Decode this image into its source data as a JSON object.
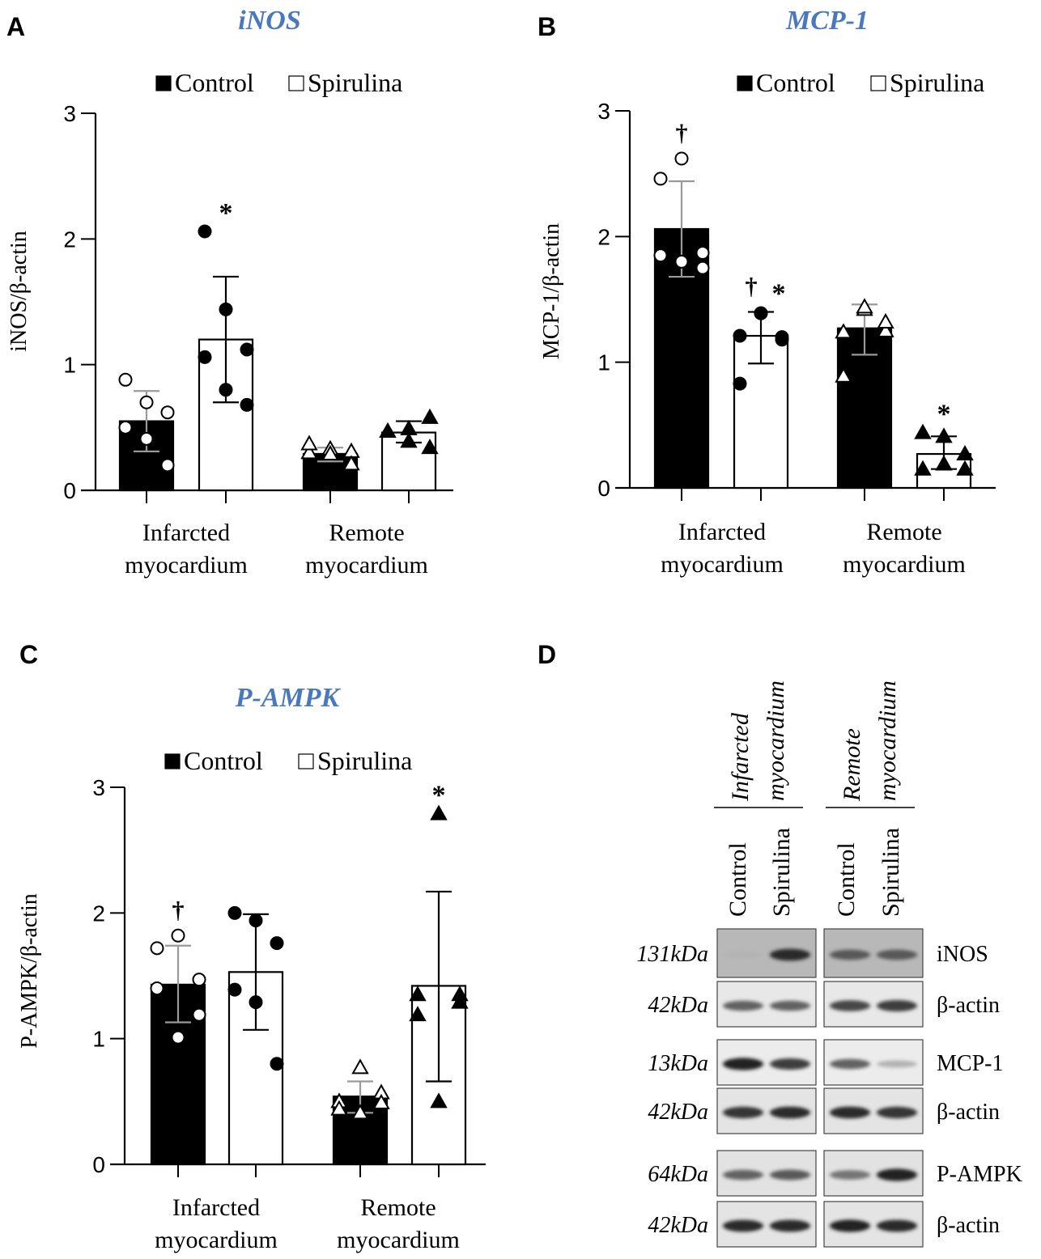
{
  "panels": {
    "A": "A",
    "B": "B",
    "C": "C",
    "D": "D"
  },
  "colors": {
    "title": "#4a78bd",
    "control_bar": "#000000",
    "spirulina_bar": "#ffffff",
    "control_error": "#9a9a9a",
    "spirulina_error": "#000000"
  },
  "chart_data": [
    {
      "type": "bar",
      "title": "iNOS",
      "ylabel": "iNOS/β-actin",
      "ylim": [
        0,
        3
      ],
      "yticks": [
        "0",
        "1",
        "2",
        "3"
      ],
      "legend": [
        "Control",
        "Spirulina"
      ],
      "legend_placement": "top",
      "categories": [
        [
          "Infarcted",
          "myocardium"
        ],
        [
          "Remote",
          "myocardium"
        ]
      ],
      "series": [
        {
          "name": "Control",
          "marker": [
            "open-circle",
            "open-triangle"
          ],
          "values": [
            0.55,
            0.29
          ],
          "error_low": [
            0.31,
            0.23
          ],
          "error_high": [
            0.79,
            0.34
          ],
          "points": [
            [
              0.88,
              0.7,
              0.62,
              0.5,
              0.41,
              0.2
            ],
            [
              0.3,
              0.33,
              0.31,
              0.37,
              0.29,
              0.21
            ]
          ]
        },
        {
          "name": "Spirulina",
          "marker": [
            "filled-circle",
            "filled-triangle"
          ],
          "values": [
            1.2,
            0.46
          ],
          "error_low": [
            0.7,
            0.38
          ],
          "error_high": [
            1.7,
            0.55
          ],
          "points": [
            [
              2.06,
              1.44,
              1.12,
              1.06,
              0.8,
              0.68
            ],
            [
              0.47,
              0.49,
              0.58,
              0.47,
              0.39,
              0.34
            ]
          ]
        }
      ],
      "annotations": [
        {
          "series": 1,
          "category": 0,
          "text": "*"
        }
      ]
    },
    {
      "type": "bar",
      "title": "MCP-1",
      "ylabel": "MCP-1/β-actin",
      "ylim": [
        0,
        3
      ],
      "yticks": [
        "0",
        "1",
        "2",
        "3"
      ],
      "legend": [
        "Control",
        "Spirulina"
      ],
      "legend_placement": "top",
      "categories": [
        [
          "Infarcted",
          "myocardium"
        ],
        [
          "Remote",
          "myocardium"
        ]
      ],
      "series": [
        {
          "name": "Control",
          "marker": [
            "open-circle",
            "open-triangle"
          ],
          "values": [
            2.06,
            1.27
          ],
          "error_low": [
            1.68,
            1.06
          ],
          "error_high": [
            2.44,
            1.46
          ],
          "points": [
            [
              1.85,
              2.62,
              1.87,
              2.46,
              1.8,
              1.75
            ],
            [
              1.24,
              1.42,
              1.25,
              0.89,
              1.44,
              1.32
            ]
          ]
        },
        {
          "name": "Spirulina",
          "marker": [
            "filled-circle",
            "filled-triangle"
          ],
          "values": [
            1.21,
            0.27
          ],
          "error_low": [
            0.99,
            0.15
          ],
          "error_high": [
            1.4,
            0.41
          ],
          "points": [
            [
              1.21,
              1.39,
              1.2,
              0.83,
              1.39,
              1.18
            ],
            [
              0.44,
              0.41,
              0.27,
              0.15,
              0.19,
              0.15
            ]
          ]
        }
      ],
      "annotations": [
        {
          "series": 0,
          "category": 0,
          "text": "†"
        },
        {
          "series": 1,
          "category": 0,
          "text": "†"
        },
        {
          "series": 1,
          "category": 0,
          "text": "*"
        },
        {
          "series": 1,
          "category": 1,
          "text": "*"
        }
      ]
    },
    {
      "type": "bar",
      "title": "P-AMPK",
      "ylabel": "P-AMPK/β-actin",
      "ylim": [
        0,
        3
      ],
      "yticks": [
        "0",
        "1",
        "2",
        "3"
      ],
      "legend": [
        "Control",
        "Spirulina"
      ],
      "legend_placement": "top",
      "categories": [
        [
          "Infarcted",
          "myocardium"
        ],
        [
          "Remote",
          "myocardium"
        ]
      ],
      "series": [
        {
          "name": "Control",
          "marker": [
            "open-circle",
            "open-triangle"
          ],
          "values": [
            1.43,
            0.54
          ],
          "error_low": [
            1.13,
            0.41
          ],
          "error_high": [
            1.74,
            0.66
          ],
          "points": [
            [
              1.4,
              1.82,
              1.19,
              1.72,
              1.01,
              1.47
            ],
            [
              0.5,
              0.77,
              0.57,
              0.44,
              0.41,
              0.49
            ]
          ]
        },
        {
          "name": "Spirulina",
          "marker": [
            "filled-circle",
            "filled-triangle"
          ],
          "values": [
            1.53,
            1.42
          ],
          "error_low": [
            1.07,
            0.66
          ],
          "error_high": [
            1.99,
            2.17
          ],
          "points": [
            [
              2.0,
              1.94,
              1.76,
              1.39,
              1.29,
              0.8
            ],
            [
              1.35,
              2.79,
              1.29,
              1.19,
              0.5,
              1.35
            ]
          ]
        }
      ],
      "annotations": [
        {
          "series": 0,
          "category": 0,
          "text": "†"
        },
        {
          "series": 1,
          "category": 1,
          "text": "*"
        }
      ]
    }
  ],
  "blot": {
    "groups": [
      [
        "Infarcted",
        "myocardium"
      ],
      [
        "Remote",
        "myocardium"
      ]
    ],
    "lanes": [
      "Control",
      "Spirulina",
      "Control",
      "Spirulina"
    ],
    "rows": [
      {
        "kda": "131kDa",
        "protein": "iNOS"
      },
      {
        "kda": "42kDa",
        "protein": "β-actin"
      },
      {
        "kda": "13kDa",
        "protein": "MCP-1"
      },
      {
        "kda": "42kDa",
        "protein": "β-actin"
      },
      {
        "kda": "64kDa",
        "protein": "P-AMPK"
      },
      {
        "kda": "42kDa",
        "protein": "β-actin"
      }
    ]
  }
}
